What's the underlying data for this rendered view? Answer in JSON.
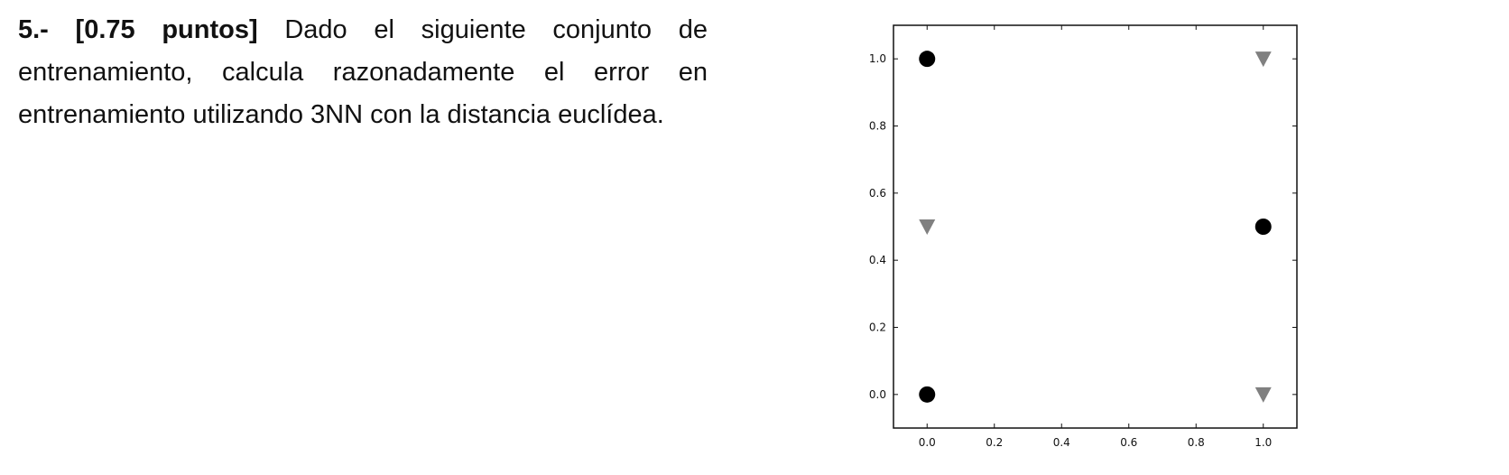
{
  "question": {
    "number_label": "5.- [0.75 puntos]",
    "text": "Dado el siguiente conjunto de entrenamiento, calcula razonadamente el error en entrenamiento utilizando 3NN con la distancia euclídea."
  },
  "chart_data": {
    "type": "scatter",
    "title": "",
    "xlabel": "",
    "ylabel": "",
    "xlim": [
      -0.1,
      1.1
    ],
    "ylim": [
      -0.1,
      1.1
    ],
    "xticks": [
      "0.0",
      "0.2",
      "0.4",
      "0.6",
      "0.8",
      "1.0"
    ],
    "yticks": [
      "0.0",
      "0.2",
      "0.4",
      "0.6",
      "0.8",
      "1.0"
    ],
    "grid": false,
    "legend": "none",
    "series": [
      {
        "marker": "circle",
        "color": "#000000",
        "x": [
          0,
          0,
          1
        ],
        "y": [
          1,
          0,
          0.5
        ]
      },
      {
        "marker": "triangle-down",
        "color": "#808080",
        "x": [
          1,
          0,
          1
        ],
        "y": [
          1,
          0.5,
          0
        ]
      }
    ]
  }
}
